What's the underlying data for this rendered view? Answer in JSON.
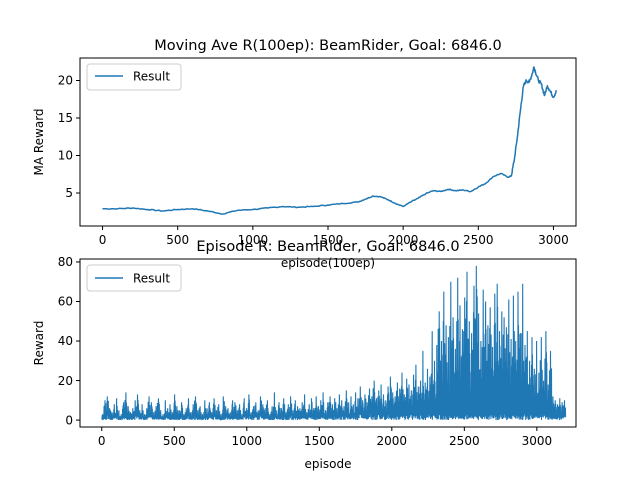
{
  "figure": {
    "background": "#ffffff"
  },
  "chart_data": [
    {
      "type": "line",
      "title": "Moving Ave R(100ep): BeamRider, Goal: 6846.0",
      "xlabel": "episode(100ep)",
      "ylabel": "MA Reward",
      "xlim": [
        -150,
        3150
      ],
      "ylim": [
        0.6,
        23.0
      ],
      "xticks": [
        0,
        500,
        1000,
        1500,
        2000,
        2500,
        3000
      ],
      "yticks": [
        5,
        10,
        15,
        20
      ],
      "grid": false,
      "legend": "top-left",
      "series": [
        {
          "name": "Result",
          "color": "#1f77b4",
          "x": [
            0,
            100,
            200,
            300,
            400,
            500,
            600,
            700,
            800,
            900,
            1000,
            1100,
            1200,
            1300,
            1400,
            1500,
            1600,
            1700,
            1750,
            1800,
            1850,
            1900,
            1950,
            2000,
            2050,
            2100,
            2150,
            2200,
            2250,
            2300,
            2350,
            2400,
            2450,
            2500,
            2550,
            2600,
            2650,
            2700,
            2720,
            2740,
            2760,
            2780,
            2800,
            2820,
            2840,
            2860,
            2870,
            2880,
            2900,
            2920,
            2940,
            2960,
            2980,
            3000,
            3020
          ],
          "y": [
            2.9,
            2.9,
            3.0,
            2.8,
            2.6,
            2.8,
            2.9,
            2.6,
            2.2,
            2.7,
            2.8,
            3.0,
            3.2,
            3.1,
            3.2,
            3.4,
            3.6,
            3.8,
            4.2,
            4.6,
            4.5,
            4.1,
            3.6,
            3.2,
            3.8,
            4.3,
            4.9,
            5.3,
            5.2,
            5.5,
            5.3,
            5.4,
            5.2,
            5.8,
            6.3,
            7.2,
            7.6,
            7.1,
            7.3,
            9.5,
            12.5,
            16.0,
            19.2,
            20.0,
            19.8,
            21.0,
            21.8,
            21.2,
            20.0,
            19.5,
            18.0,
            19.3,
            18.5,
            17.8,
            18.6
          ]
        }
      ]
    },
    {
      "type": "line",
      "title": "Episode R: BeamRider, Goal: 6846.0",
      "xlabel": "episode",
      "ylabel": "Reward",
      "xlim": [
        -150,
        3270
      ],
      "ylim": [
        -3.5,
        81.5
      ],
      "xticks": [
        0,
        500,
        1000,
        1500,
        2000,
        2500,
        3000
      ],
      "yticks": [
        0,
        20,
        40,
        60,
        80
      ],
      "grid": false,
      "legend": "top-left",
      "series": [
        {
          "name": "Result",
          "color": "#1f77b4",
          "x_start": 0,
          "x_step": 10,
          "peaks": [
            3,
            10,
            12,
            6,
            4,
            8,
            11,
            5,
            3,
            9,
            14,
            7,
            4,
            6,
            10,
            13,
            5,
            8,
            3,
            6,
            12,
            9,
            4,
            7,
            11,
            5,
            3,
            10,
            6,
            8,
            4,
            13,
            7,
            5,
            9,
            3,
            6,
            11,
            4,
            8,
            12,
            5,
            7,
            3,
            10,
            6,
            9,
            4,
            11,
            5,
            8,
            3,
            12,
            7,
            6,
            4,
            10,
            9,
            5,
            8,
            3,
            11,
            6,
            13,
            4,
            7,
            9,
            5,
            12,
            8,
            6,
            10,
            3,
            7,
            14,
            5,
            9,
            6,
            11,
            4,
            8,
            12,
            5,
            10,
            7,
            6,
            9,
            13,
            4,
            8,
            11,
            6,
            12,
            7,
            10,
            14,
            5,
            9,
            12,
            8,
            11,
            6,
            13,
            10,
            7,
            15,
            9,
            12,
            8,
            14,
            11,
            17,
            10,
            13,
            9,
            16,
            12,
            20,
            11,
            15,
            18,
            13,
            10,
            17,
            22,
            14,
            12,
            19,
            16,
            24,
            13,
            21,
            18,
            15,
            23,
            28,
            17,
            20,
            35,
            19,
            26,
            22,
            45,
            30,
            38,
            55,
            40,
            65,
            48,
            42,
            70,
            52,
            36,
            72,
            58,
            46,
            62,
            75,
            50,
            44,
            68,
            78,
            54,
            40,
            66,
            60,
            48,
            57,
            37,
            64,
            69,
            45,
            55,
            52,
            47,
            61,
            41,
            63,
            40,
            65,
            44,
            69,
            38,
            45,
            30,
            42,
            26,
            40,
            24,
            42,
            20,
            45,
            18,
            35,
            12,
            10,
            8,
            11,
            9,
            10
          ]
        }
      ]
    }
  ]
}
